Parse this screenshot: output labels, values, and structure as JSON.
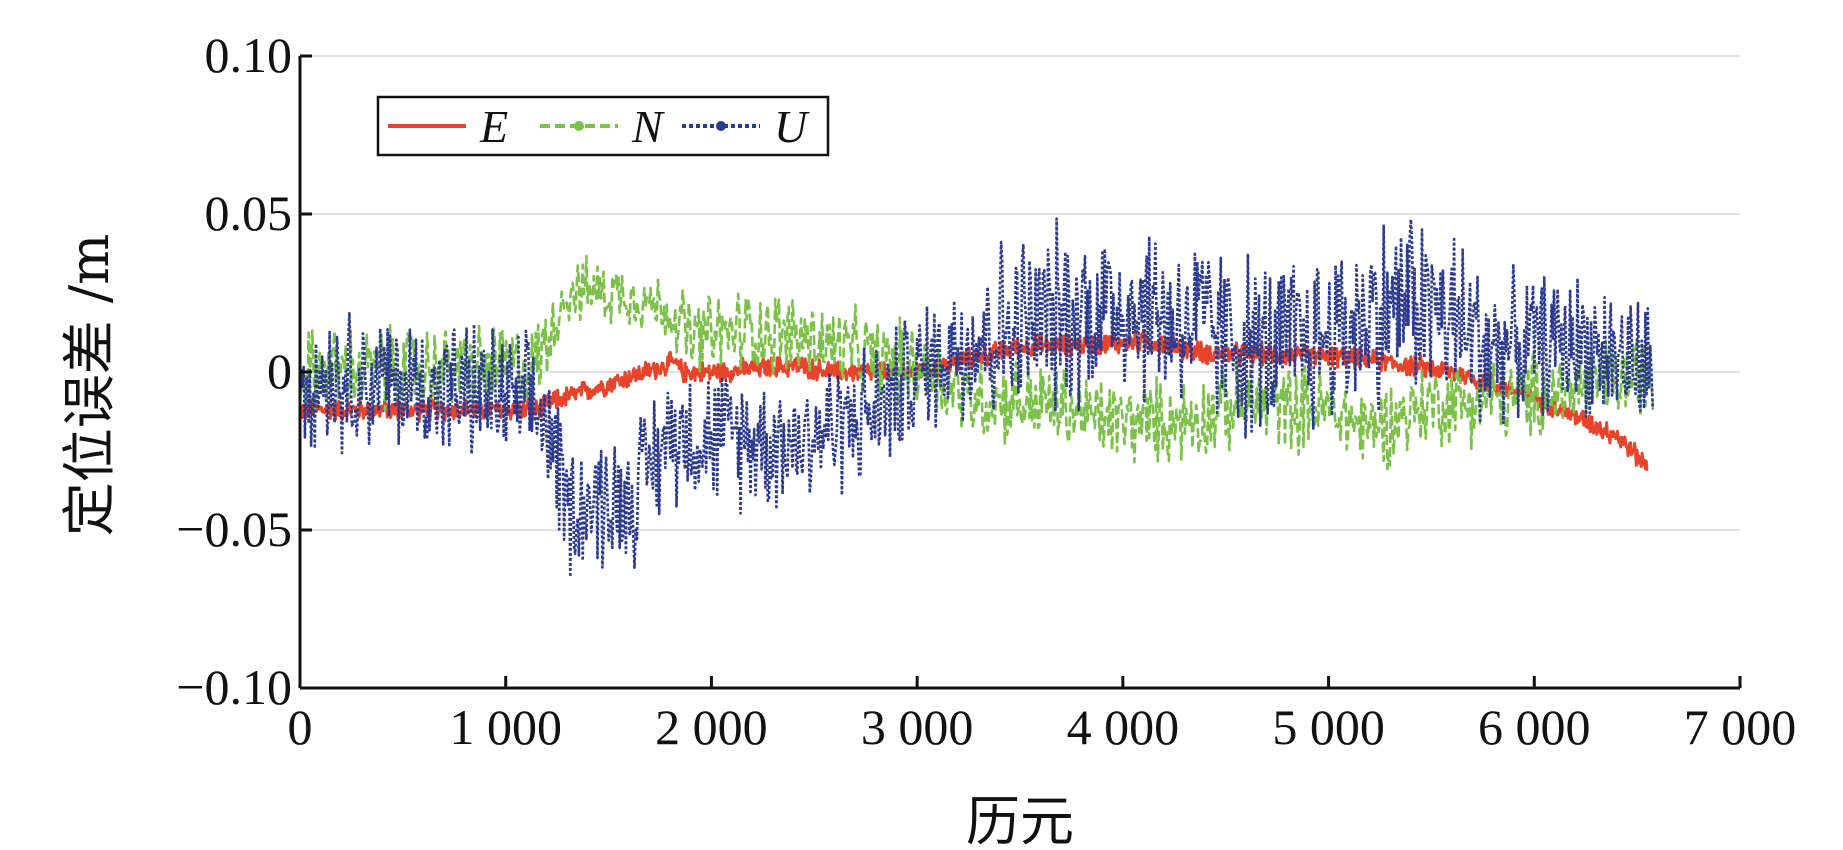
{
  "chart_data": {
    "type": "line",
    "title": "",
    "xlabel": "历元",
    "ylabel": "定位误差 /m",
    "xlim": [
      0,
      7000
    ],
    "ylim": [
      -0.1,
      0.1
    ],
    "x_ticks": [
      0,
      1000,
      2000,
      3000,
      4000,
      5000,
      6000,
      7000
    ],
    "x_tick_labels": [
      "0",
      "1 000",
      "2 000",
      "3 000",
      "4 000",
      "5 000",
      "6 000",
      "7 000"
    ],
    "y_ticks": [
      0.1,
      0.05,
      0,
      -0.05,
      -0.1
    ],
    "y_tick_labels": [
      "0.10",
      "0.05",
      "0",
      "−0.05",
      "−0.10"
    ],
    "grid": "horizontal",
    "legend_position": "top-left",
    "series": [
      {
        "name": "E",
        "color": "#e8442c",
        "style": "solid",
        "x_range": [
          0,
          6550
        ],
        "trend": [
          [
            0,
            -0.012
          ],
          [
            1000,
            -0.012
          ],
          [
            1180,
            -0.012
          ],
          [
            1200,
            -0.01
          ],
          [
            1820,
            0.003
          ],
          [
            1860,
            0.0
          ],
          [
            2000,
            0.0
          ],
          [
            2400,
            0.002
          ],
          [
            2600,
            0.0
          ],
          [
            3000,
            0.0
          ],
          [
            3500,
            0.008
          ],
          [
            4000,
            0.009
          ],
          [
            4100,
            0.01
          ],
          [
            4400,
            0.006
          ],
          [
            5000,
            0.005
          ],
          [
            5200,
            0.004
          ],
          [
            5600,
            0.0
          ],
          [
            6000,
            -0.008
          ],
          [
            6400,
            -0.02
          ],
          [
            6550,
            -0.03
          ]
        ],
        "noise_amplitude": 0.004
      },
      {
        "name": "N",
        "color": "#7cc249",
        "style": "dashed",
        "x_range": [
          0,
          6580
        ],
        "trend": [
          [
            0,
            0.0
          ],
          [
            1150,
            0.002
          ],
          [
            1200,
            0.01
          ],
          [
            1300,
            0.026
          ],
          [
            1600,
            0.025
          ],
          [
            1820,
            0.018
          ],
          [
            1900,
            0.01
          ],
          [
            2200,
            0.014
          ],
          [
            2500,
            0.01
          ],
          [
            2800,
            0.004
          ],
          [
            3000,
            0.002
          ],
          [
            3250,
            -0.008
          ],
          [
            3600,
            -0.01
          ],
          [
            4000,
            -0.016
          ],
          [
            4300,
            -0.015
          ],
          [
            4600,
            -0.01
          ],
          [
            5000,
            -0.012
          ],
          [
            5200,
            -0.018
          ],
          [
            5500,
            -0.01
          ],
          [
            6000,
            -0.008
          ],
          [
            6580,
            0.0
          ]
        ],
        "noise_amplitude": 0.016
      },
      {
        "name": "U",
        "color": "#2b3a8f",
        "style": "dotted",
        "x_range": [
          0,
          6580
        ],
        "trend": [
          [
            0,
            0.0
          ],
          [
            1000,
            -0.008
          ],
          [
            1200,
            -0.015
          ],
          [
            1300,
            -0.042
          ],
          [
            1600,
            -0.04
          ],
          [
            1820,
            -0.018
          ],
          [
            2000,
            -0.02
          ],
          [
            2400,
            -0.022
          ],
          [
            2800,
            -0.012
          ],
          [
            3200,
            0.01
          ],
          [
            3600,
            0.016
          ],
          [
            4000,
            0.022
          ],
          [
            4400,
            0.014
          ],
          [
            4700,
            0.006
          ],
          [
            5000,
            0.012
          ],
          [
            5400,
            0.024
          ],
          [
            5800,
            0.008
          ],
          [
            6200,
            0.01
          ],
          [
            6580,
            0.0
          ]
        ],
        "noise_amplitude": 0.026
      }
    ]
  }
}
